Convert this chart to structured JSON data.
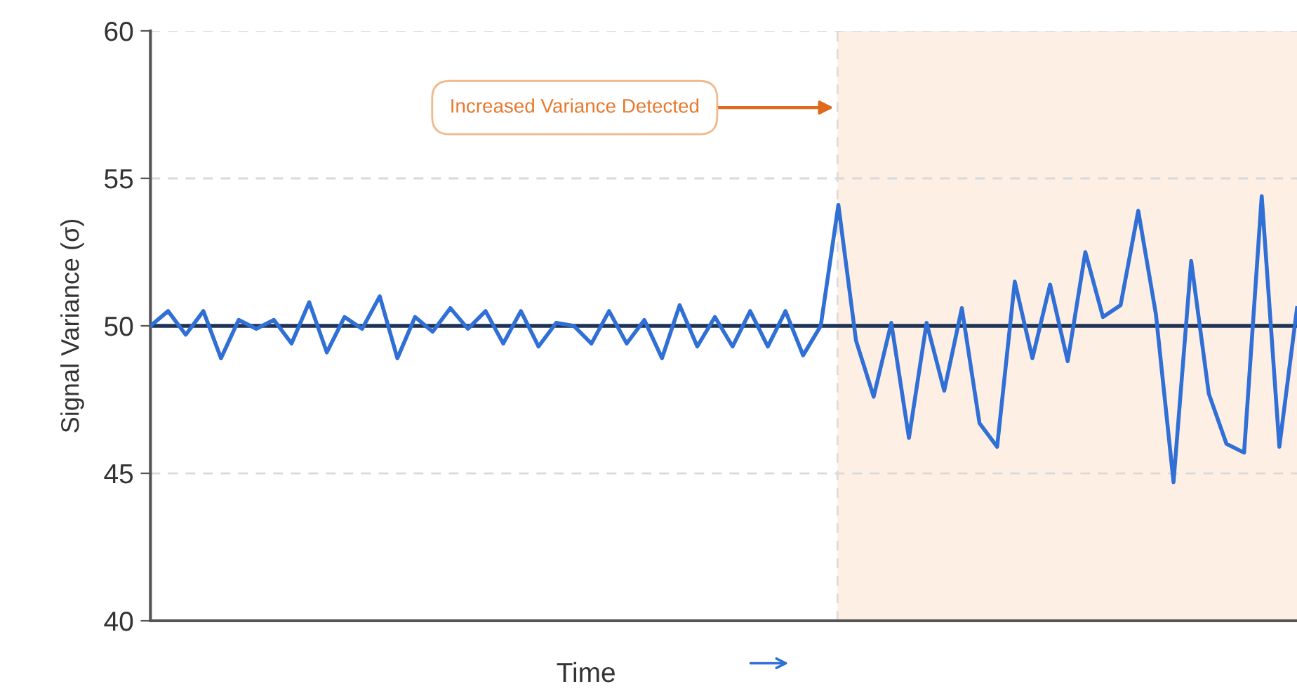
{
  "chart_data": {
    "type": "line",
    "xlabel": "Time",
    "ylabel": "Signal Variance (σ)",
    "categories": [
      null,
      null,
      null,
      null,
      null,
      null,
      null,
      null,
      null,
      null,
      null,
      null,
      null,
      null,
      null,
      null,
      null,
      null,
      null,
      null,
      null,
      null,
      null,
      null,
      null,
      null,
      null,
      null,
      null,
      null,
      null,
      null,
      null,
      null,
      null,
      null,
      null,
      null,
      null,
      null,
      null,
      null,
      null,
      null,
      null,
      null,
      null,
      null,
      null,
      null,
      null,
      null,
      null,
      null,
      null,
      null,
      null,
      null,
      null,
      null,
      null,
      null,
      null,
      null,
      null,
      null
    ],
    "series": [
      {
        "color": "#2f6fd6",
        "values": [
          50,
          50.5,
          49.7,
          50.5,
          48.9,
          50.2,
          49.9,
          50.2,
          49.4,
          50.8,
          49.1,
          50.3,
          49.9,
          51.0,
          48.9,
          50.3,
          49.8,
          50.6,
          49.9,
          50.5,
          49.4,
          50.5,
          49.3,
          50.1,
          50.0,
          49.4,
          50.5,
          49.4,
          50.2,
          48.9,
          50.7,
          49.3,
          50.3,
          49.3,
          50.5,
          49.3,
          50.5,
          49.0,
          50.0,
          54.1,
          49.5,
          47.6,
          50.1,
          46.2,
          50.1,
          47.8,
          50.6,
          46.7,
          45.9,
          51.5,
          48.9,
          51.4,
          48.8,
          52.5,
          50.3,
          50.7,
          53.9,
          50.4,
          44.7,
          52.2,
          47.7,
          46.0,
          45.7,
          54.4,
          45.9,
          50.6
        ]
      }
    ],
    "ylim": [
      40,
      60
    ],
    "yticks": [
      40,
      45,
      50,
      55,
      60
    ],
    "grid": "y",
    "marker": "none",
    "line_style": "solid",
    "tick_labels": "y",
    "ref_lines": [
      {
        "axis": "y",
        "value": 50,
        "color": "#1e3356",
        "line_style": "solid"
      }
    ],
    "annotations": [
      "Increased Variance Detected"
    ]
  }
}
